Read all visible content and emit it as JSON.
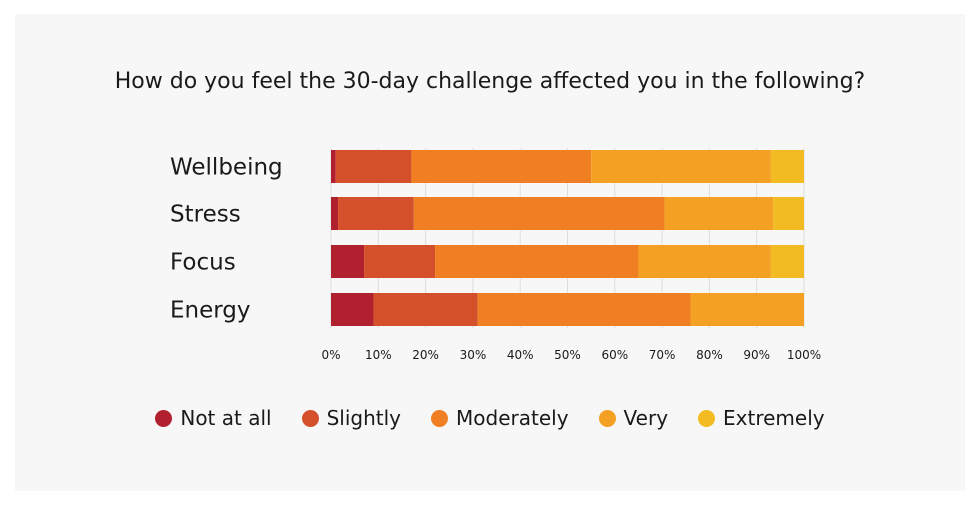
{
  "chart_data": {
    "type": "bar",
    "orientation": "horizontal",
    "stacked": true,
    "title": "How do you feel the 30-day challenge affected you in the following?",
    "categories": [
      "Wellbeing",
      "Stress",
      "Focus",
      "Energy"
    ],
    "series": [
      {
        "name": "Not at all",
        "color": "#b1202e",
        "values": [
          1,
          1.5,
          7,
          9
        ]
      },
      {
        "name": "Slightly",
        "color": "#d4502b",
        "values": [
          16,
          16,
          15,
          22
        ]
      },
      {
        "name": "Moderately",
        "color": "#ef7f22",
        "values": [
          38,
          53,
          43,
          45
        ]
      },
      {
        "name": "Very",
        "color": "#f4a023",
        "values": [
          38,
          23,
          28,
          24
        ]
      },
      {
        "name": "Extremely",
        "color": "#f3bb22",
        "values": [
          7,
          6.5,
          7,
          0
        ]
      }
    ],
    "xlim": [
      0,
      100
    ],
    "xticks": [
      "0%",
      "10%",
      "20%",
      "30%",
      "40%",
      "50%",
      "60%",
      "70%",
      "80%",
      "90%",
      "100%"
    ],
    "grid": true,
    "legend": "bottom"
  }
}
